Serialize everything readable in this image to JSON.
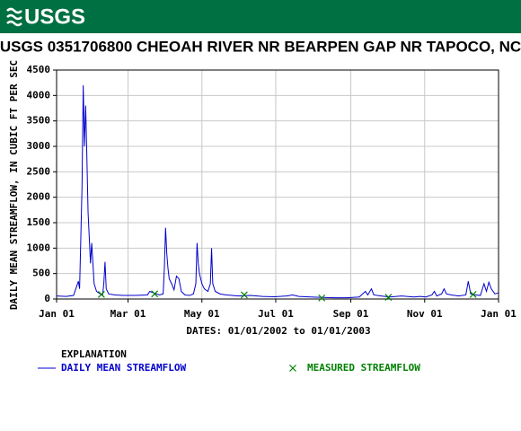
{
  "logo": "USGS",
  "chart_data": {
    "type": "line",
    "title": "USGS 0351706800 CHEOAH RIVER NR BEARPEN GAP NR TAPOCO, NC",
    "ylabel": "DAILY MEAN STREAMFLOW, IN CUBIC FT PER SEC",
    "xlabel": "DATES: 01/01/2002 to 01/01/2003",
    "legend_title": "EXPLANATION",
    "xlim": [
      "2002-01-01",
      "2003-01-01"
    ],
    "xticks": [
      {
        "value": "2002-01-01",
        "label": "Jan 01"
      },
      {
        "value": "2002-03-01",
        "label": "Mar 01"
      },
      {
        "value": "2002-05-01",
        "label": "May 01"
      },
      {
        "value": "2002-07-01",
        "label": "Jul 01"
      },
      {
        "value": "2002-09-01",
        "label": "Sep 01"
      },
      {
        "value": "2002-11-01",
        "label": "Nov 01"
      },
      {
        "value": "2003-01-01",
        "label": "Jan 01"
      }
    ],
    "ylim": [
      0,
      4500
    ],
    "yticks": [
      0,
      500,
      1000,
      1500,
      2000,
      2500,
      3000,
      3500,
      4000,
      4500
    ],
    "grid": true,
    "series": [
      {
        "name": "DAILY MEAN STREAMFLOW",
        "color": "#0000cc",
        "style": "line",
        "x": [
          "2002-01-01",
          "2002-01-09",
          "2002-01-15",
          "2002-01-19",
          "2002-01-20",
          "2002-01-22",
          "2002-01-23",
          "2002-01-24",
          "2002-01-25",
          "2002-01-26",
          "2002-01-27",
          "2002-01-28",
          "2002-01-29",
          "2002-01-30",
          "2002-01-31",
          "2002-02-01",
          "2002-02-03",
          "2002-02-06",
          "2002-02-08",
          "2002-02-09",
          "2002-02-10",
          "2002-02-11",
          "2002-02-13",
          "2002-02-18",
          "2002-02-25",
          "2002-03-07",
          "2002-03-17",
          "2002-03-19",
          "2002-03-22",
          "2002-03-27",
          "2002-03-30",
          "2002-03-31",
          "2002-04-01",
          "2002-04-02",
          "2002-04-03",
          "2002-04-04",
          "2002-04-06",
          "2002-04-08",
          "2002-04-10",
          "2002-04-12",
          "2002-04-14",
          "2002-04-17",
          "2002-04-21",
          "2002-04-24",
          "2002-04-26",
          "2002-04-27",
          "2002-04-28",
          "2002-04-29",
          "2002-05-01",
          "2002-05-03",
          "2002-05-06",
          "2002-05-08",
          "2002-05-09",
          "2002-05-10",
          "2002-05-12",
          "2002-05-16",
          "2002-05-21",
          "2002-05-31",
          "2002-06-10",
          "2002-06-20",
          "2002-06-30",
          "2002-07-10",
          "2002-07-15",
          "2002-07-20",
          "2002-07-30",
          "2002-08-09",
          "2002-08-19",
          "2002-08-29",
          "2002-09-08",
          "2002-09-13",
          "2002-09-15",
          "2002-09-18",
          "2002-09-20",
          "2002-09-26",
          "2002-10-03",
          "2002-10-13",
          "2002-10-23",
          "2002-10-28",
          "2002-11-02",
          "2002-11-07",
          "2002-11-09",
          "2002-11-11",
          "2002-11-15",
          "2002-11-17",
          "2002-11-19",
          "2002-11-23",
          "2002-11-29",
          "2002-12-05",
          "2002-12-07",
          "2002-12-09",
          "2002-12-13",
          "2002-12-17",
          "2002-12-20",
          "2002-12-22",
          "2002-12-24",
          "2002-12-26",
          "2002-12-29",
          "2003-01-01"
        ],
        "values": [
          60,
          50,
          70,
          350,
          200,
          2200,
          4200,
          3000,
          3800,
          2800,
          1700,
          1200,
          700,
          1100,
          700,
          300,
          150,
          100,
          80,
          300,
          730,
          200,
          100,
          80,
          70,
          70,
          80,
          150,
          120,
          80,
          100,
          600,
          1400,
          900,
          600,
          400,
          300,
          180,
          450,
          400,
          150,
          80,
          70,
          100,
          300,
          1100,
          700,
          500,
          300,
          200,
          150,
          300,
          1000,
          300,
          150,
          100,
          80,
          60,
          70,
          50,
          45,
          60,
          80,
          50,
          40,
          30,
          25,
          25,
          40,
          150,
          80,
          200,
          80,
          60,
          40,
          60,
          40,
          50,
          40,
          80,
          150,
          60,
          100,
          200,
          100,
          80,
          60,
          80,
          350,
          100,
          80,
          70,
          300,
          150,
          330,
          200,
          100,
          120
        ]
      },
      {
        "name": "MEASURED STREAMFLOW",
        "color": "#008000",
        "style": "x",
        "x": [
          "2002-02-07",
          "2002-03-23",
          "2002-06-05",
          "2002-08-08",
          "2002-10-02",
          "2002-12-11"
        ],
        "values": [
          90,
          100,
          80,
          20,
          35,
          90
        ]
      }
    ]
  }
}
